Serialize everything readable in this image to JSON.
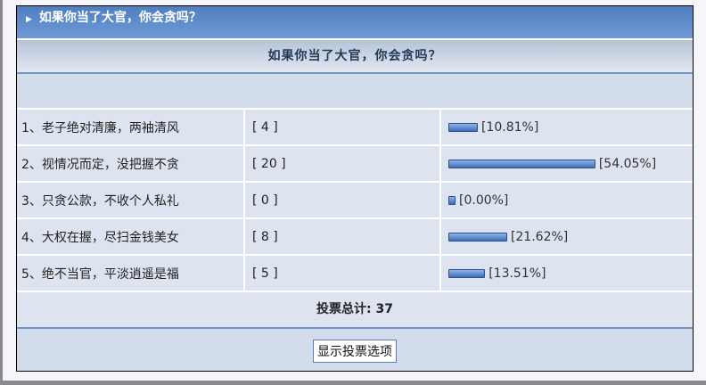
{
  "header": {
    "title": "如果你当了大官，你会贪吗？"
  },
  "poll": {
    "question": "如果你当了大官，你会贪吗？",
    "options": [
      {
        "label": "1、老子绝对清廉，两袖清风",
        "votes": "[ 4 ]",
        "percent": 10.81,
        "percent_label": "[10.81%]"
      },
      {
        "label": "2、视情况而定，没把握不贪",
        "votes": "[ 20 ]",
        "percent": 54.05,
        "percent_label": "[54.05%]"
      },
      {
        "label": "3、只贪公款，不收个人私礼",
        "votes": "[ 0 ]",
        "percent": 0,
        "percent_label": "[0.00%]"
      },
      {
        "label": "4、大权在握，尽扫金钱美女",
        "votes": "[ 8 ]",
        "percent": 21.62,
        "percent_label": "[21.62%]"
      },
      {
        "label": "5、绝不当官，平淡逍遥是福",
        "votes": "[ 5 ]",
        "percent": 13.51,
        "percent_label": "[13.51%]"
      }
    ],
    "total_label": "投票总计: 37",
    "show_options_button": "显示投票选项"
  },
  "colors": {
    "header": "#5a88c8",
    "bar": "#4a7cc4"
  }
}
